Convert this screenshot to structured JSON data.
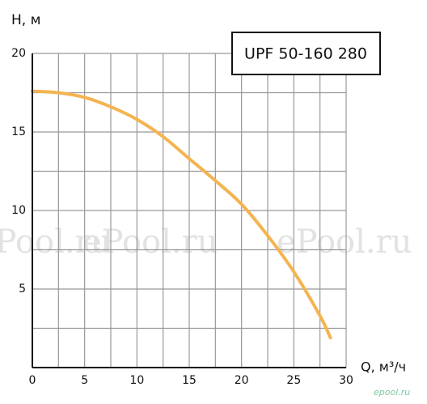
{
  "chart_data": {
    "type": "line",
    "legend_title": "UPF 50-160 280",
    "ylabel": "H, м",
    "xlabel": "Q, м³/ч",
    "watermarks": [
      "ePool.ru",
      "ePool.ru",
      "ePool.ru",
      "epool.ru"
    ],
    "xlim": [
      0,
      30
    ],
    "ylim": [
      0,
      20
    ],
    "xticks": [
      0,
      5,
      10,
      15,
      20,
      25,
      30
    ],
    "yticks": [
      5,
      10,
      15,
      20
    ],
    "xgrid": [
      2.5,
      5,
      7.5,
      10,
      12.5,
      15,
      17.5,
      20,
      22.5,
      25,
      27.5,
      30
    ],
    "ygrid": [
      2.5,
      5,
      7.5,
      10,
      12.5,
      15,
      17.5,
      20
    ],
    "grid": true,
    "series": [
      {
        "color": "#f4b450",
        "x": [
          0,
          2.5,
          5,
          7.5,
          10,
          12.5,
          15,
          17.5,
          20,
          22.5,
          25,
          27.5,
          28.5
        ],
        "values": [
          17.6,
          17.5,
          17.2,
          16.6,
          15.8,
          14.7,
          13.3,
          11.9,
          10.4,
          8.4,
          6.1,
          3.3,
          1.9
        ]
      }
    ]
  }
}
